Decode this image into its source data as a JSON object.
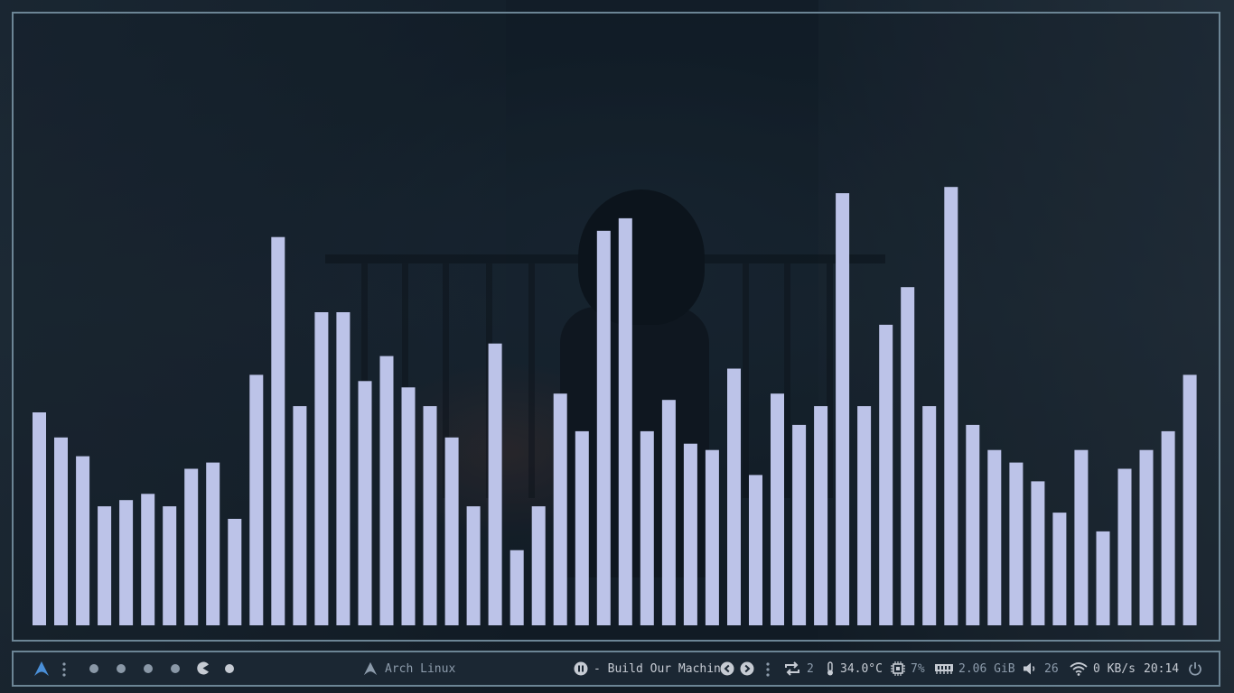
{
  "screen": {
    "width": 1366,
    "height": 768
  },
  "visualizer": {
    "bar_color": "#bcc3e8",
    "levels": [
      0.34,
      0.3,
      0.27,
      0.19,
      0.2,
      0.21,
      0.19,
      0.25,
      0.26,
      0.17,
      0.4,
      0.62,
      0.35,
      0.5,
      0.5,
      0.39,
      0.43,
      0.38,
      0.35,
      0.3,
      0.19,
      0.45,
      0.12,
      0.19,
      0.37,
      0.31,
      0.63,
      0.65,
      0.31,
      0.36,
      0.29,
      0.28,
      0.41,
      0.24,
      0.37,
      0.32,
      0.35,
      0.69,
      0.35,
      0.48,
      0.54,
      0.35,
      0.7,
      0.32,
      0.28,
      0.26,
      0.23,
      0.18,
      0.28,
      0.15,
      0.25,
      0.28,
      0.31,
      0.4
    ]
  },
  "taskbar": {
    "launcher_icon": "arch-logo-icon",
    "menu_icon": "vertical-dots-icon",
    "workspaces": [
      {
        "name": "workspace-1",
        "state": "occupied"
      },
      {
        "name": "workspace-2",
        "state": "occupied"
      },
      {
        "name": "workspace-3",
        "state": "occupied"
      },
      {
        "name": "workspace-4",
        "state": "occupied"
      },
      {
        "name": "workspace-5",
        "state": "active"
      },
      {
        "name": "workspace-6",
        "state": "empty"
      }
    ],
    "window_title": "Arch Linux",
    "media": {
      "play_pause_icon": "pause-circle-icon",
      "track": "- Build Our Machine",
      "prev_icon": "prev-circle-icon",
      "next_icon": "next-circle-icon"
    },
    "updates": {
      "icon": "repeat-icon",
      "count": "2"
    },
    "temperature": {
      "icon": "thermometer-icon",
      "value": "34.0°C"
    },
    "cpu": {
      "icon": "cpu-icon",
      "value": "7%"
    },
    "memory": {
      "icon": "memory-icon",
      "value": "2.06 GiB"
    },
    "volume": {
      "icon": "speaker-icon",
      "value": "26"
    },
    "network": {
      "icon": "wifi-icon",
      "value": "0 KB/s"
    },
    "clock": "20:14",
    "power_icon": "power-icon"
  },
  "colors": {
    "frame_border": "#6c8595",
    "bar_bg": "#1b2733",
    "text": "#8c9bab",
    "arch_blue": "#4a8fd8"
  }
}
